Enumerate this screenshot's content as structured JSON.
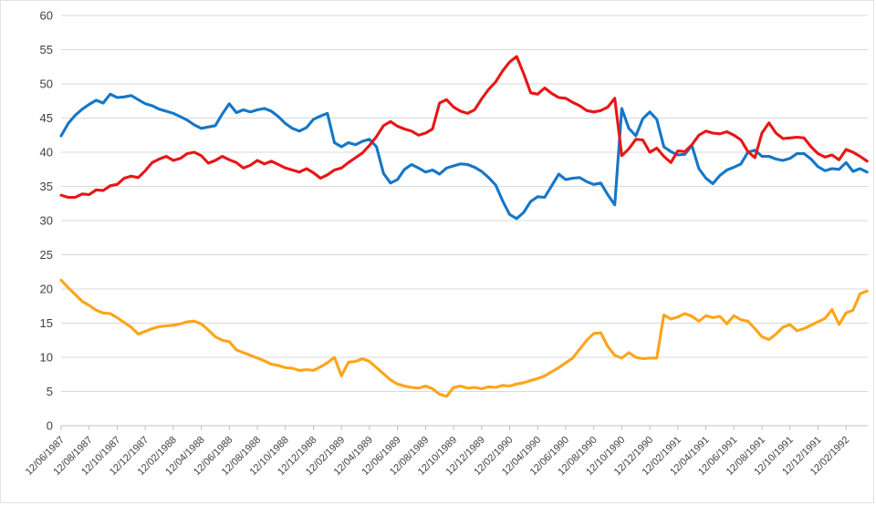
{
  "chart_data": {
    "type": "line",
    "title": "",
    "xlabel": "",
    "ylabel": "",
    "ylim": [
      0,
      60
    ],
    "y_ticks": [
      0,
      5,
      10,
      15,
      20,
      25,
      30,
      35,
      40,
      45,
      50,
      55,
      60
    ],
    "grid": "horizontal",
    "legend": "none",
    "x_tick_labels": [
      "12/06/1987",
      "12/08/1987",
      "12/10/1987",
      "12/12/1987",
      "12/02/1988",
      "12/04/1988",
      "12/06/1988",
      "12/08/1988",
      "12/10/1988",
      "12/12/1988",
      "12/02/1989",
      "12/04/1989",
      "12/06/1989",
      "12/08/1989",
      "12/10/1989",
      "12/12/1989",
      "12/02/1990",
      "12/04/1990",
      "12/06/1990",
      "12/08/1990",
      "12/10/1990",
      "12/12/1990",
      "12/02/1991",
      "12/04/1991",
      "12/06/1991",
      "12/08/1991",
      "12/10/1991",
      "12/12/1991",
      "12/02/1992"
    ],
    "points_per_tick_interval": 4,
    "colors": {
      "grid": "#d9d9d9",
      "axis": "#bfbfbf",
      "tick_label": "#404040"
    },
    "series": [
      {
        "name": "blue-series",
        "color": "#1477c8",
        "values": [
          42.4,
          44.2,
          45.4,
          46.3,
          47.0,
          47.6,
          47.2,
          48.5,
          48.0,
          48.1,
          48.3,
          47.7,
          47.1,
          46.8,
          46.3,
          46.0,
          45.7,
          45.2,
          44.7,
          44.0,
          43.5,
          43.7,
          43.9,
          45.6,
          47.1,
          45.8,
          46.2,
          45.9,
          46.2,
          46.4,
          46.0,
          45.2,
          44.2,
          43.5,
          43.1,
          43.6,
          44.8,
          45.3,
          45.7,
          41.4,
          40.8,
          41.4,
          41.1,
          41.6,
          41.9,
          40.8,
          36.9,
          35.5,
          36.0,
          37.5,
          38.2,
          37.7,
          37.1,
          37.4,
          36.8,
          37.7,
          38.0,
          38.3,
          38.2,
          37.8,
          37.2,
          36.3,
          35.2,
          32.9,
          30.9,
          30.3,
          31.2,
          32.8,
          33.5,
          33.4,
          35.1,
          36.8,
          36.0,
          36.2,
          36.3,
          35.7,
          35.3,
          35.5,
          33.8,
          32.3,
          46.4,
          43.5,
          42.4,
          44.9,
          45.9,
          44.8,
          40.8,
          40.1,
          39.6,
          39.7,
          41.0,
          37.6,
          36.2,
          35.4,
          36.6,
          37.4,
          37.8,
          38.3,
          40.0,
          40.3,
          39.4,
          39.4,
          39.0,
          38.8,
          39.1,
          39.8,
          39.8,
          39.0,
          37.9,
          37.3,
          37.6,
          37.5,
          38.5,
          37.2,
          37.6,
          37.1
        ]
      },
      {
        "name": "red-series",
        "color": "#e81616",
        "values": [
          33.7,
          33.4,
          33.4,
          33.9,
          33.8,
          34.5,
          34.4,
          35.1,
          35.3,
          36.2,
          36.5,
          36.3,
          37.3,
          38.5,
          39.0,
          39.4,
          38.8,
          39.1,
          39.8,
          40.0,
          39.5,
          38.4,
          38.8,
          39.4,
          38.9,
          38.5,
          37.7,
          38.1,
          38.8,
          38.3,
          38.7,
          38.2,
          37.7,
          37.4,
          37.1,
          37.6,
          37.0,
          36.2,
          36.7,
          37.4,
          37.7,
          38.5,
          39.2,
          39.9,
          41.0,
          42.3,
          43.9,
          44.5,
          43.8,
          43.4,
          43.1,
          42.5,
          42.8,
          43.4,
          47.2,
          47.7,
          46.6,
          46.0,
          45.7,
          46.2,
          47.8,
          49.2,
          50.3,
          51.9,
          53.2,
          54.0,
          51.5,
          48.7,
          48.5,
          49.4,
          48.6,
          48.0,
          47.9,
          47.3,
          46.8,
          46.1,
          45.9,
          46.1,
          46.6,
          47.9,
          39.5,
          40.5,
          41.9,
          41.8,
          40.0,
          40.6,
          39.4,
          38.5,
          40.2,
          40.1,
          41.1,
          42.5,
          43.1,
          42.8,
          42.7,
          43.0,
          42.5,
          41.8,
          40.1,
          39.2,
          42.8,
          44.3,
          42.8,
          42.0,
          42.1,
          42.2,
          42.1,
          40.8,
          39.8,
          39.3,
          39.6,
          38.9,
          40.4,
          40.0,
          39.4,
          38.7
        ]
      },
      {
        "name": "orange-series",
        "color": "#ffa418",
        "values": [
          21.3,
          20.2,
          19.2,
          18.2,
          17.6,
          16.9,
          16.5,
          16.4,
          15.8,
          15.1,
          14.4,
          13.4,
          13.8,
          14.2,
          14.5,
          14.6,
          14.7,
          14.9,
          15.2,
          15.3,
          14.9,
          14.0,
          13.0,
          12.5,
          12.3,
          11.1,
          10.7,
          10.3,
          9.9,
          9.5,
          9.0,
          8.8,
          8.5,
          8.4,
          8.1,
          8.2,
          8.1,
          8.6,
          9.2,
          10.0,
          7.3,
          9.3,
          9.4,
          9.8,
          9.4,
          8.5,
          7.6,
          6.7,
          6.1,
          5.8,
          5.6,
          5.5,
          5.8,
          5.4,
          4.6,
          4.3,
          5.6,
          5.8,
          5.5,
          5.6,
          5.4,
          5.7,
          5.6,
          5.9,
          5.8,
          6.1,
          6.3,
          6.6,
          6.9,
          7.3,
          7.9,
          8.5,
          9.2,
          9.9,
          11.2,
          12.5,
          13.5,
          13.6,
          11.6,
          10.3,
          9.9,
          10.7,
          10.0,
          9.8,
          9.9,
          9.9,
          16.2,
          15.6,
          15.9,
          16.4,
          16.0,
          15.3,
          16.1,
          15.8,
          16.0,
          14.9,
          16.1,
          15.5,
          15.3,
          14.2,
          13.0,
          12.6,
          13.4,
          14.4,
          14.8,
          13.9,
          14.2,
          14.7,
          15.2,
          15.7,
          17.0,
          14.8,
          16.5,
          16.9,
          19.3,
          19.7
        ]
      }
    ]
  }
}
